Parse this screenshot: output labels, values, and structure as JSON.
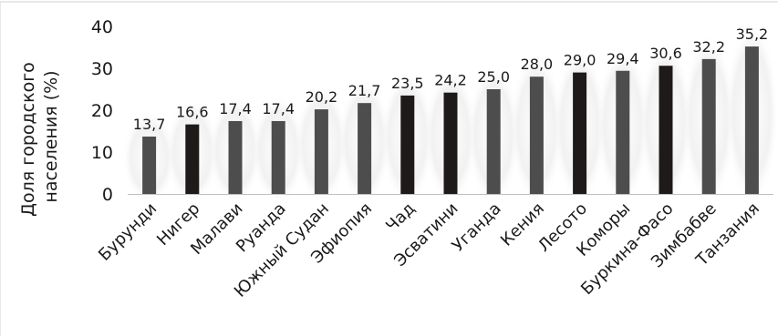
{
  "chart_data": {
    "type": "bar",
    "ylabel_lines": [
      "Доля городского",
      "населения (%)"
    ],
    "ylim": [
      0,
      40
    ],
    "yticks": [
      0,
      10,
      20,
      30,
      40
    ],
    "grid": false,
    "categories": [
      "Бурунди",
      "Нигер",
      "Малави",
      "Руанда",
      "Южный Судан",
      "Эфиопия",
      "Чад",
      "Эсватини",
      "Уганда",
      "Кения",
      "Лесото",
      "Коморы",
      "Буркина-Фасо",
      "Зимбабве",
      "Танзания"
    ],
    "values": [
      13.7,
      16.6,
      17.4,
      17.4,
      20.2,
      21.7,
      23.5,
      24.2,
      25.0,
      28.0,
      29.0,
      29.4,
      30.6,
      32.2,
      35.2
    ],
    "value_labels": [
      "13,7",
      "16,6",
      "17,4",
      "17,4",
      "20,2",
      "21,7",
      "23,5",
      "24,2",
      "25,0",
      "28,0",
      "29,0",
      "29,4",
      "30,6",
      "32,2",
      "35,2"
    ],
    "bar_colors": [
      "#4d4d4d",
      "#1f1a1a",
      "#4d4d4d",
      "#4d4d4d",
      "#4d4d4d",
      "#4d4d4d",
      "#1f1a1a",
      "#1f1a1a",
      "#4d4d4d",
      "#4d4d4d",
      "#1f1a1a",
      "#4d4d4d",
      "#1f1a1a",
      "#4d4d4d",
      "#4d4d4d"
    ]
  }
}
